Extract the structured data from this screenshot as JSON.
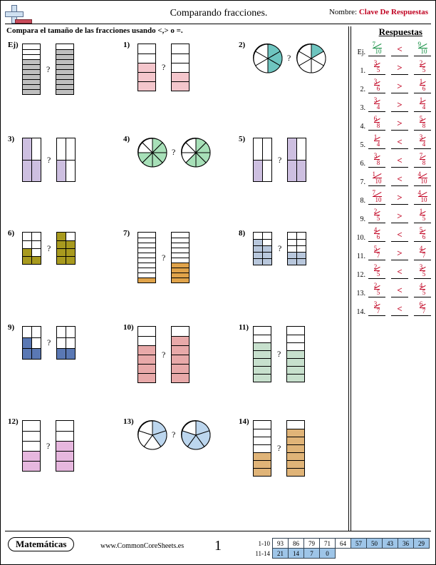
{
  "header": {
    "title": "Comparando fracciones.",
    "name_label": "Nombre:",
    "name_value": "Clave De Respuestas",
    "instruction": "Compara el tamaño de las fracciones usando <,> o =.",
    "answers_heading": "Respuestas"
  },
  "colors": {
    "empty": "#ffffff",
    "grey": "#bfbfbf",
    "pink": "#f4c6cc",
    "teal": "#6ec5c0",
    "lav": "#cdbfe0",
    "mint": "#a7e0b8",
    "olive": "#a89a1e",
    "orange": "#e0a34a",
    "steel": "#b8c7dc",
    "darkblue": "#5a78b4",
    "salmon": "#e8a9a9",
    "sage": "#c7e0cd",
    "magenta": "#e6b7de",
    "ltblue": "#bcd6ee",
    "tan": "#e0b478"
  },
  "problems": [
    {
      "label": "Ej)",
      "type": "bar",
      "denom": 10,
      "a_fill": 7,
      "b_fill": 9,
      "color": "grey",
      "seg_h": 7
    },
    {
      "label": "1)",
      "type": "bar",
      "denom": 5,
      "a_fill": 3,
      "b_fill": 2,
      "color": "pink",
      "seg_h": 13
    },
    {
      "label": "2)",
      "type": "pie",
      "denom": 6,
      "a_fill": 3,
      "b_fill": 1,
      "color": "teal"
    },
    {
      "label": "3)",
      "type": "bar_split",
      "denom": 4,
      "a_fill": 3,
      "b_fill": 1,
      "color": "lav",
      "seg_h": 30
    },
    {
      "label": "4)",
      "type": "pie",
      "denom": 8,
      "a_fill": 6,
      "b_fill": 5,
      "color": "mint"
    },
    {
      "label": "5)",
      "type": "bar_split",
      "denom": 4,
      "a_fill": 1,
      "b_fill": 3,
      "color": "lav",
      "seg_h": 30
    },
    {
      "label": "6)",
      "type": "bar_split",
      "denom": 8,
      "a_fill": 3,
      "b_fill": 7,
      "color": "olive",
      "seg_h": 11
    },
    {
      "label": "7)",
      "type": "bar",
      "denom": 10,
      "a_fill": 1,
      "b_fill": 4,
      "color": "orange",
      "seg_h": 7
    },
    {
      "label": "8)",
      "type": "bar_split",
      "denom": 10,
      "a_fill": 7,
      "b_fill": 4,
      "color": "steel",
      "seg_h": 9
    },
    {
      "label": "9)",
      "type": "bar_split",
      "denom": 5,
      "a_fill": 2,
      "b_fill": 1,
      "color": "darkblue",
      "seg_h": 15
    },
    {
      "label": "10)",
      "type": "bar",
      "denom": 6,
      "a_fill": 4,
      "b_fill": 5,
      "color": "salmon",
      "seg_h": 13
    },
    {
      "label": "11)",
      "type": "bar",
      "denom": 7,
      "a_fill": 5,
      "b_fill": 4,
      "color": "sage",
      "seg_h": 11
    },
    {
      "label": "12)",
      "type": "bar",
      "denom": 5,
      "a_fill": 2,
      "b_fill": 3,
      "color": "magenta",
      "seg_h": 14
    },
    {
      "label": "13)",
      "type": "pie",
      "denom": 5,
      "a_fill": 2,
      "b_fill": 4,
      "color": "ltblue"
    },
    {
      "label": "14)",
      "type": "bar",
      "denom": 7,
      "a_fill": 3,
      "b_fill": 6,
      "color": "tan",
      "seg_h": 11
    }
  ],
  "answers": [
    {
      "num": "Ej.",
      "la": "7",
      "lb": "10",
      "cmp": "<",
      "ra": "9",
      "rb": "10",
      "color": "green"
    },
    {
      "num": "1.",
      "la": "3",
      "lb": "5",
      "cmp": ">",
      "ra": "2",
      "rb": "5",
      "color": "red"
    },
    {
      "num": "2.",
      "la": "3",
      "lb": "6",
      "cmp": ">",
      "ra": "1",
      "rb": "6",
      "color": "red"
    },
    {
      "num": "3.",
      "la": "3",
      "lb": "4",
      "cmp": ">",
      "ra": "1",
      "rb": "4",
      "color": "red"
    },
    {
      "num": "4.",
      "la": "6",
      "lb": "8",
      "cmp": ">",
      "ra": "5",
      "rb": "8",
      "color": "red"
    },
    {
      "num": "5.",
      "la": "1",
      "lb": "4",
      "cmp": "<",
      "ra": "3",
      "rb": "4",
      "color": "red"
    },
    {
      "num": "6.",
      "la": "3",
      "lb": "8",
      "cmp": "<",
      "ra": "7",
      "rb": "8",
      "color": "red"
    },
    {
      "num": "7.",
      "la": "1",
      "lb": "10",
      "cmp": "<",
      "ra": "4",
      "rb": "10",
      "color": "red"
    },
    {
      "num": "8.",
      "la": "7",
      "lb": "10",
      "cmp": ">",
      "ra": "4",
      "rb": "10",
      "color": "red"
    },
    {
      "num": "9.",
      "la": "2",
      "lb": "5",
      "cmp": ">",
      "ra": "1",
      "rb": "5",
      "color": "red"
    },
    {
      "num": "10.",
      "la": "4",
      "lb": "6",
      "cmp": "<",
      "ra": "5",
      "rb": "6",
      "color": "red"
    },
    {
      "num": "11.",
      "la": "5",
      "lb": "7",
      "cmp": ">",
      "ra": "4",
      "rb": "7",
      "color": "red"
    },
    {
      "num": "12.",
      "la": "2",
      "lb": "5",
      "cmp": "<",
      "ra": "3",
      "rb": "5",
      "color": "red"
    },
    {
      "num": "13.",
      "la": "2",
      "lb": "5",
      "cmp": "<",
      "ra": "4",
      "rb": "5",
      "color": "red"
    },
    {
      "num": "14.",
      "la": "3",
      "lb": "7",
      "cmp": "<",
      "ra": "6",
      "rb": "7",
      "color": "red"
    }
  ],
  "footer": {
    "subject": "Matemáticas",
    "site": "www.CommonCoreSheets.es",
    "page": "1",
    "score_row1_label": "1-10",
    "score_row2_label": "11-14",
    "score_row1": [
      "93",
      "86",
      "79",
      "71",
      "64",
      "57",
      "50",
      "43",
      "36",
      "29"
    ],
    "score_row2": [
      "21",
      "14",
      "7",
      "0"
    ],
    "row1_hl_from": 5,
    "row2_hl": true
  }
}
